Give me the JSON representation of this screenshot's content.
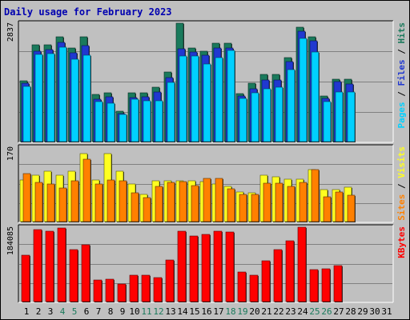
{
  "title": "Daily usage for February 2023",
  "colors": {
    "title": "#0000b0",
    "hits": "#1a7a5c",
    "files": "#2038d0",
    "pages": "#00d0ff",
    "sites": "#ff8000",
    "visits": "#ffff20",
    "kbytes": "#ff0000",
    "weekend": "#1a7a5c",
    "panel": "#c0c0c0",
    "grid": "#808080"
  },
  "side_labels": {
    "top": [
      {
        "text": "Pages",
        "color": "#00d0ff"
      },
      {
        "text": " / ",
        "color": "#000000"
      },
      {
        "text": "Files",
        "color": "#2038d0"
      },
      {
        "text": " / ",
        "color": "#000000"
      },
      {
        "text": "Hits",
        "color": "#1a7a5c"
      }
    ],
    "middle": [
      {
        "text": "Sites",
        "color": "#ff8000"
      },
      {
        "text": " / ",
        "color": "#000000"
      },
      {
        "text": "Visits",
        "color": "#ffff20"
      }
    ],
    "bottom": [
      {
        "text": "KBytes",
        "color": "#ff0000"
      }
    ]
  },
  "chart_data": [
    {
      "type": "bar",
      "name": "hits-files-pages",
      "ymax_label": "2837",
      "ylim": [
        0,
        2837
      ],
      "categories": [
        "1",
        "2",
        "3",
        "4",
        "5",
        "6",
        "7",
        "8",
        "9",
        "10",
        "11",
        "12",
        "13",
        "14",
        "15",
        "16",
        "17",
        "18",
        "19",
        "20",
        "21",
        "22",
        "23",
        "24",
        "25",
        "26",
        "27",
        "28",
        "29",
        "30",
        "31"
      ],
      "weekend_days": [
        4,
        5,
        11,
        12,
        18,
        19,
        25,
        26
      ],
      "series": [
        {
          "name": "Hits",
          "values": [
            1457,
            2320,
            2320,
            2511,
            2249,
            2511,
            1122,
            1161,
            730,
            1161,
            1161,
            1295,
            1661,
            2837,
            2249,
            2175,
            2355,
            2355,
            1145,
            1404,
            1604,
            1604,
            2004,
            2740,
            2511,
            1087,
            1494,
            1494,
            null,
            null,
            null
          ]
        },
        {
          "name": "Files",
          "values": [
            1396,
            2169,
            2212,
            2381,
            2119,
            2299,
            1016,
            1070,
            680,
            1056,
            1070,
            1179,
            1527,
            2225,
            2140,
            2065,
            2247,
            2243,
            1095,
            1271,
            1478,
            1478,
            1909,
            2648,
            2419,
            1026,
            1445,
            1389,
            null,
            null,
            null
          ]
        },
        {
          "name": "Pages",
          "values": [
            1325,
            2088,
            2099,
            2266,
            1980,
            2066,
            960,
            927,
            646,
            1016,
            969,
            979,
            1414,
            2060,
            2052,
            1866,
            2016,
            2187,
            1027,
            1162,
            1271,
            1300,
            1725,
            2475,
            2152,
            951,
            1180,
            1180,
            null,
            null,
            null
          ]
        }
      ]
    },
    {
      "type": "bar",
      "name": "sites-visits",
      "ymax_label": "170",
      "ylim": [
        0,
        170
      ],
      "categories": [
        "1",
        "2",
        "3",
        "4",
        "5",
        "6",
        "7",
        "8",
        "9",
        "10",
        "11",
        "12",
        "13",
        "14",
        "15",
        "16",
        "17",
        "18",
        "19",
        "20",
        "21",
        "22",
        "23",
        "24",
        "25",
        "26",
        "27",
        "28",
        "29",
        "30",
        "31"
      ],
      "series": [
        {
          "name": "Visits",
          "values": [
            95,
            106,
            115,
            106,
            116,
            155,
            95,
            155,
            115,
            85,
            62,
            93,
            93,
            93,
            93,
            91,
            85,
            81,
            67,
            65,
            106,
            103,
            97,
            96,
            118,
            73,
            74,
            79,
            null,
            null,
            null
          ]
        },
        {
          "name": "Sites",
          "values": [
            110,
            90,
            85,
            77,
            93,
            143,
            85,
            95,
            93,
            65,
            55,
            80,
            90,
            91,
            83,
            98,
            98,
            75,
            62,
            63,
            87,
            88,
            80,
            89,
            118,
            57,
            67,
            60,
            null,
            null,
            null
          ]
        }
      ]
    },
    {
      "type": "bar",
      "name": "kbytes",
      "ymax_label": "184085",
      "ylim": [
        0,
        184085
      ],
      "categories": [
        "1",
        "2",
        "3",
        "4",
        "5",
        "6",
        "7",
        "8",
        "9",
        "10",
        "11",
        "12",
        "13",
        "14",
        "15",
        "16",
        "17",
        "18",
        "19",
        "20",
        "21",
        "22",
        "23",
        "24",
        "25",
        "26",
        "27",
        "28",
        "29",
        "30",
        "31"
      ],
      "series": [
        {
          "name": "KBytes",
          "values": [
            114328,
            178085,
            174405,
            182370,
            128643,
            140356,
            53630,
            54855,
            42598,
            65661,
            66274,
            58919,
            102420,
            175018,
            162147,
            166435,
            174405,
            172566,
            74021,
            65048,
            101196,
            128155,
            150224,
            184085,
            79308,
            81760,
            88500,
            null,
            null,
            null,
            null
          ]
        }
      ]
    }
  ]
}
